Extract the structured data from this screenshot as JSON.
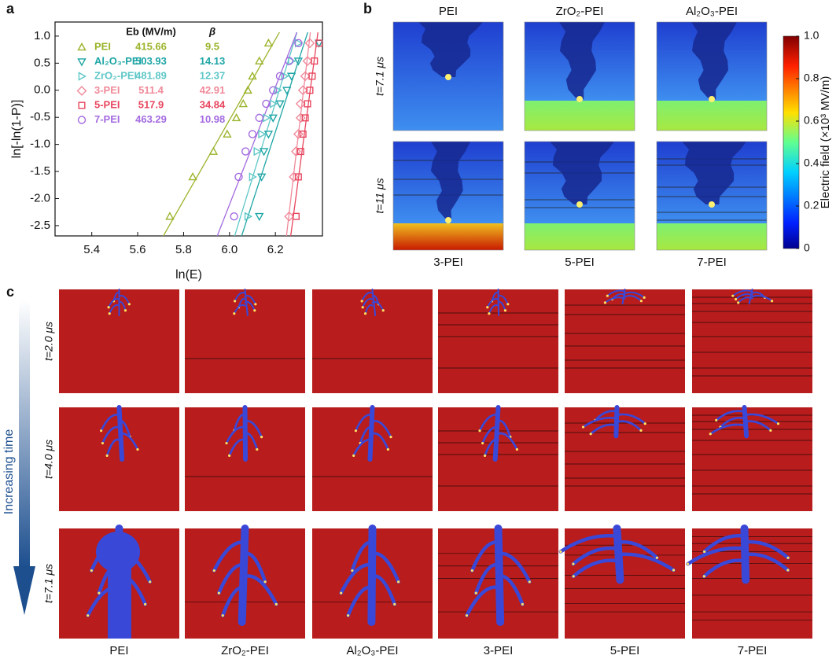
{
  "panel_labels": [
    "a",
    "b",
    "c"
  ],
  "chart_data": {
    "type": "scatter",
    "x_label": "ln(E)",
    "y_label": "ln[-ln(1-P)]",
    "xlim": [
      5.24,
      6.405
    ],
    "xticks": [
      5.4,
      5.6,
      5.8,
      {
        "value": 6,
        "label": "6.0"
      },
      6.2
    ],
    "ylim": [
      -2.69,
      1.26
    ],
    "yticks": [
      {
        "value": 1,
        "label": "1.0"
      },
      0.5,
      {
        "value": 0,
        "label": "0.0"
      },
      -0.5,
      {
        "value": -1,
        "label": "-1.0"
      },
      -1.5,
      {
        "value": -2,
        "label": "-2.0"
      },
      -2.5
    ],
    "columns": [
      "Eb (MV/m)",
      "β"
    ],
    "series": [
      {
        "name": "PEI",
        "color": "#9ab42a",
        "marker": "triangle-up",
        "Eb": 415.66,
        "beta": 9.5,
        "x": [
          6.17,
          6.13,
          6.1,
          6.08,
          6.06,
          6.03,
          5.99,
          5.93,
          5.84,
          5.74
        ],
        "values": [
          0.87,
          0.54,
          0.26,
          0.0,
          -0.25,
          -0.51,
          -0.81,
          -1.13,
          -1.6,
          -2.33
        ]
      },
      {
        "name": "Al₂O₃-PEI",
        "color": "#1fa5a5",
        "marker": "triangle-down",
        "Eb": 503.93,
        "beta": 14.13,
        "x": [
          6.39,
          6.3,
          6.27,
          6.25,
          6.22,
          6.19,
          6.17,
          6.15,
          6.14,
          6.13
        ],
        "values": [
          0.87,
          0.54,
          0.26,
          0.0,
          -0.25,
          -0.51,
          -0.81,
          -1.13,
          -1.6,
          -2.33
        ]
      },
      {
        "name": "ZrO₂-PEI",
        "color": "#5fc7c7",
        "marker": "triangle-right",
        "Eb": 481.89,
        "beta": 12.37,
        "x": [
          6.3,
          6.27,
          6.24,
          6.21,
          6.19,
          6.16,
          6.14,
          6.12,
          6.1,
          6.08
        ],
        "values": [
          0.87,
          0.54,
          0.26,
          0.0,
          -0.25,
          -0.51,
          -0.81,
          -1.13,
          -1.6,
          -2.33
        ]
      },
      {
        "name": "3-PEI",
        "color": "#f08a9a",
        "marker": "diamond",
        "Eb": 511.4,
        "beta": 42.91,
        "x": [
          6.35,
          6.34,
          6.33,
          6.32,
          6.31,
          6.31,
          6.3,
          6.29,
          6.28,
          6.26
        ],
        "values": [
          0.87,
          0.54,
          0.26,
          0.0,
          -0.25,
          -0.51,
          -0.81,
          -1.13,
          -1.6,
          -2.33
        ]
      },
      {
        "name": "5-PEI",
        "color": "#e8465e",
        "marker": "square",
        "Eb": 517.9,
        "beta": 34.84,
        "x": [
          6.39,
          6.37,
          6.36,
          6.35,
          6.34,
          6.33,
          6.32,
          6.31,
          6.3,
          6.29
        ],
        "values": [
          0.87,
          0.54,
          0.26,
          0.0,
          -0.25,
          -0.51,
          -0.81,
          -1.13,
          -1.6,
          -2.33
        ]
      },
      {
        "name": "7-PEI",
        "color": "#a46be0",
        "marker": "circle",
        "Eb": 463.29,
        "beta": 10.98,
        "x": [
          6.3,
          6.26,
          6.22,
          6.19,
          6.16,
          6.13,
          6.1,
          6.07,
          6.04,
          6.02
        ],
        "values": [
          0.87,
          0.54,
          0.26,
          0.0,
          -0.25,
          -0.51,
          -0.81,
          -1.13,
          -1.6,
          -2.33
        ]
      }
    ]
  },
  "field_maps": {
    "rows": [
      {
        "label": "t=7.1 μs",
        "panels": [
          "PEI",
          "ZrO₂-PEI",
          "Al₂O₃-PEI"
        ]
      },
      {
        "label": "t=11 μs",
        "panels": [
          "3-PEI",
          "5-PEI",
          "7-PEI"
        ]
      }
    ],
    "colorbar": {
      "label": "Electric field (×10³ MV/m)",
      "lim": [
        0,
        1
      ],
      "ticks": [
        0,
        0.2,
        0.4,
        0.6,
        0.8,
        {
          "value": 1,
          "label": "1.0"
        }
      ]
    }
  },
  "breakdown_grid": {
    "columns": [
      "PEI",
      "ZrO₂-PEI",
      "Al₂O₃-PEI",
      "3-PEI",
      "5-PEI",
      "7-PEI"
    ],
    "rows": [
      "t=2.0 μs",
      "t=4.0 μs",
      "t=7.1 μs"
    ],
    "arrow_label": "Increasing time"
  }
}
